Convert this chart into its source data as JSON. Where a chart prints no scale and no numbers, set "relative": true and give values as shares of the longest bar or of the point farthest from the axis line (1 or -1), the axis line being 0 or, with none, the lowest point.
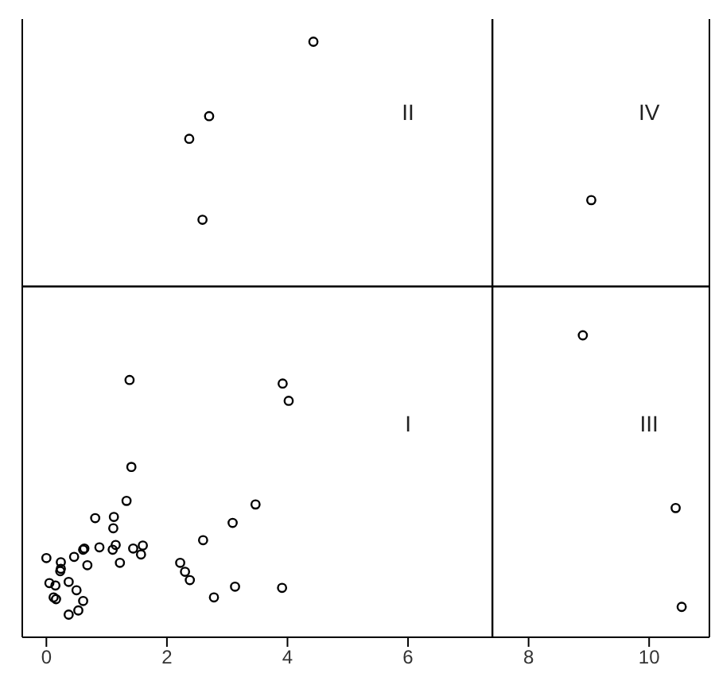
{
  "chart_data": {
    "type": "scatter",
    "relative": true,
    "x": [
      1.38,
      3.92,
      4.02,
      1.41,
      1.33,
      0.81,
      1.12,
      1.11,
      3.47,
      3.09,
      2.6,
      0.0,
      0.24,
      0.46,
      0.61,
      0.63,
      0.68,
      0.88,
      1.1,
      1.15,
      1.22,
      1.44,
      1.57,
      1.6,
      2.22,
      2.3,
      2.38,
      2.78,
      3.13,
      3.91,
      0.05,
      0.15,
      0.24,
      0.23,
      0.37,
      0.5,
      0.12,
      0.16,
      0.61,
      0.53,
      0.37,
      4.43,
      2.7,
      2.37,
      2.59,
      9.04,
      8.9,
      10.44,
      10.54
    ],
    "values": [
      0.432,
      0.426,
      0.397,
      0.286,
      0.229,
      0.2,
      0.202,
      0.183,
      0.223,
      0.192,
      0.163,
      0.133,
      0.126,
      0.135,
      0.147,
      0.149,
      0.121,
      0.151,
      0.147,
      0.155,
      0.125,
      0.149,
      0.139,
      0.154,
      0.125,
      0.11,
      0.096,
      0.067,
      0.085,
      0.083,
      0.091,
      0.087,
      0.115,
      0.111,
      0.093,
      0.079,
      0.067,
      0.064,
      0.061,
      0.045,
      0.038,
      1,
      0.875,
      0.837,
      0.701,
      0.734,
      0.507,
      0.217,
      0.051
    ],
    "color": "#000000",
    "marker": "circle",
    "grid": false,
    "xlim": [
      -0.4,
      11
    ],
    "xticks": [
      0,
      2,
      4,
      6,
      8,
      10
    ],
    "ref_lines": [
      {
        "axis": "x",
        "value": 7.4,
        "color": "#000000"
      },
      {
        "axis": "y",
        "value": 0.589,
        "color": "#000000"
      }
    ],
    "annotations": [
      "I",
      "II",
      "III",
      "IV"
    ]
  }
}
